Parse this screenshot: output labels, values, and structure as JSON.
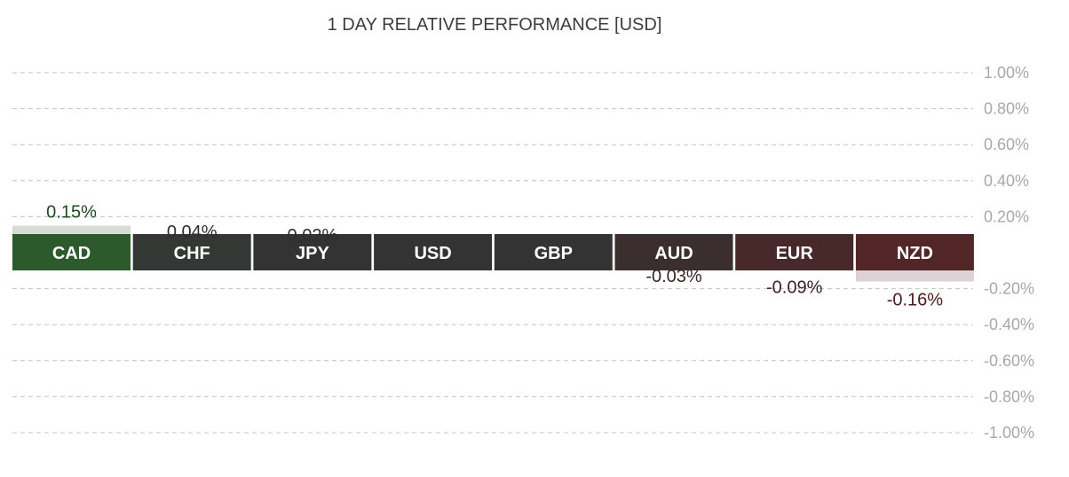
{
  "chart_data": {
    "type": "bar",
    "title": "1 DAY RELATIVE PERFORMANCE  [USD]",
    "categories": [
      "CAD",
      "CHF",
      "JPY",
      "USD",
      "GBP",
      "AUD",
      "EUR",
      "NZD"
    ],
    "values": [
      0.15,
      0.04,
      0.02,
      0,
      0,
      -0.03,
      -0.09,
      -0.16
    ],
    "value_labels": [
      "0.15%",
      "0.04%",
      "0.02%",
      "",
      "",
      "-0.03%",
      "-0.09%",
      "-0.16%"
    ],
    "ylim": [
      -1.0,
      1.0
    ],
    "yticks": [
      1.0,
      0.8,
      0.6,
      0.4,
      0.2,
      -0.2,
      -0.4,
      -0.6,
      -0.8,
      -1.0
    ],
    "ytick_labels": [
      "1.00%",
      "0.80%",
      "0.60%",
      "0.40%",
      "0.20%",
      "-0.20%",
      "-0.40%",
      "-0.60%",
      "-0.80%",
      "-1.00%"
    ],
    "grid": true,
    "label_colors": [
      "#1e4a1e",
      "#2e2e2e",
      "#2e2e2e",
      "#2e2e2e",
      "#2e2e2e",
      "#3a2626",
      "#3a2020",
      "#4a1c1c"
    ],
    "tile_colors": [
      "#2c5a2c",
      "#333835",
      "#333333",
      "#333333",
      "#333333",
      "#3b2e2e",
      "#47292a",
      "#522626"
    ],
    "positive_bar_color": "#d6dbd6",
    "negative_bar_color": "#dcd2d3",
    "grid_color": "#c4c4c4"
  }
}
